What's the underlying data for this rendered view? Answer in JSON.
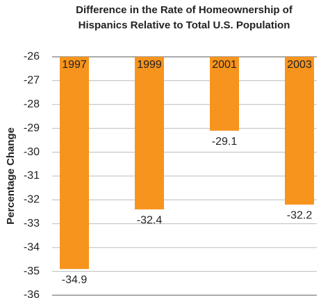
{
  "chart_data": {
    "type": "bar",
    "title": "Difference in the Rate of Homeownership of Hispanics Relative to Total U.S. Population",
    "y_label": "Percentage Change",
    "categories": [
      "1997",
      "1999",
      "2001",
      "2003"
    ],
    "values": [
      -34.9,
      -32.4,
      -29.1,
      -32.2
    ],
    "color": "#f7941d",
    "ylim": [
      -36,
      -26
    ],
    "yticks": [
      -36,
      -35,
      -34,
      -33,
      -32,
      -31,
      -30,
      -29,
      -28,
      -27,
      -26
    ],
    "grid": true
  }
}
